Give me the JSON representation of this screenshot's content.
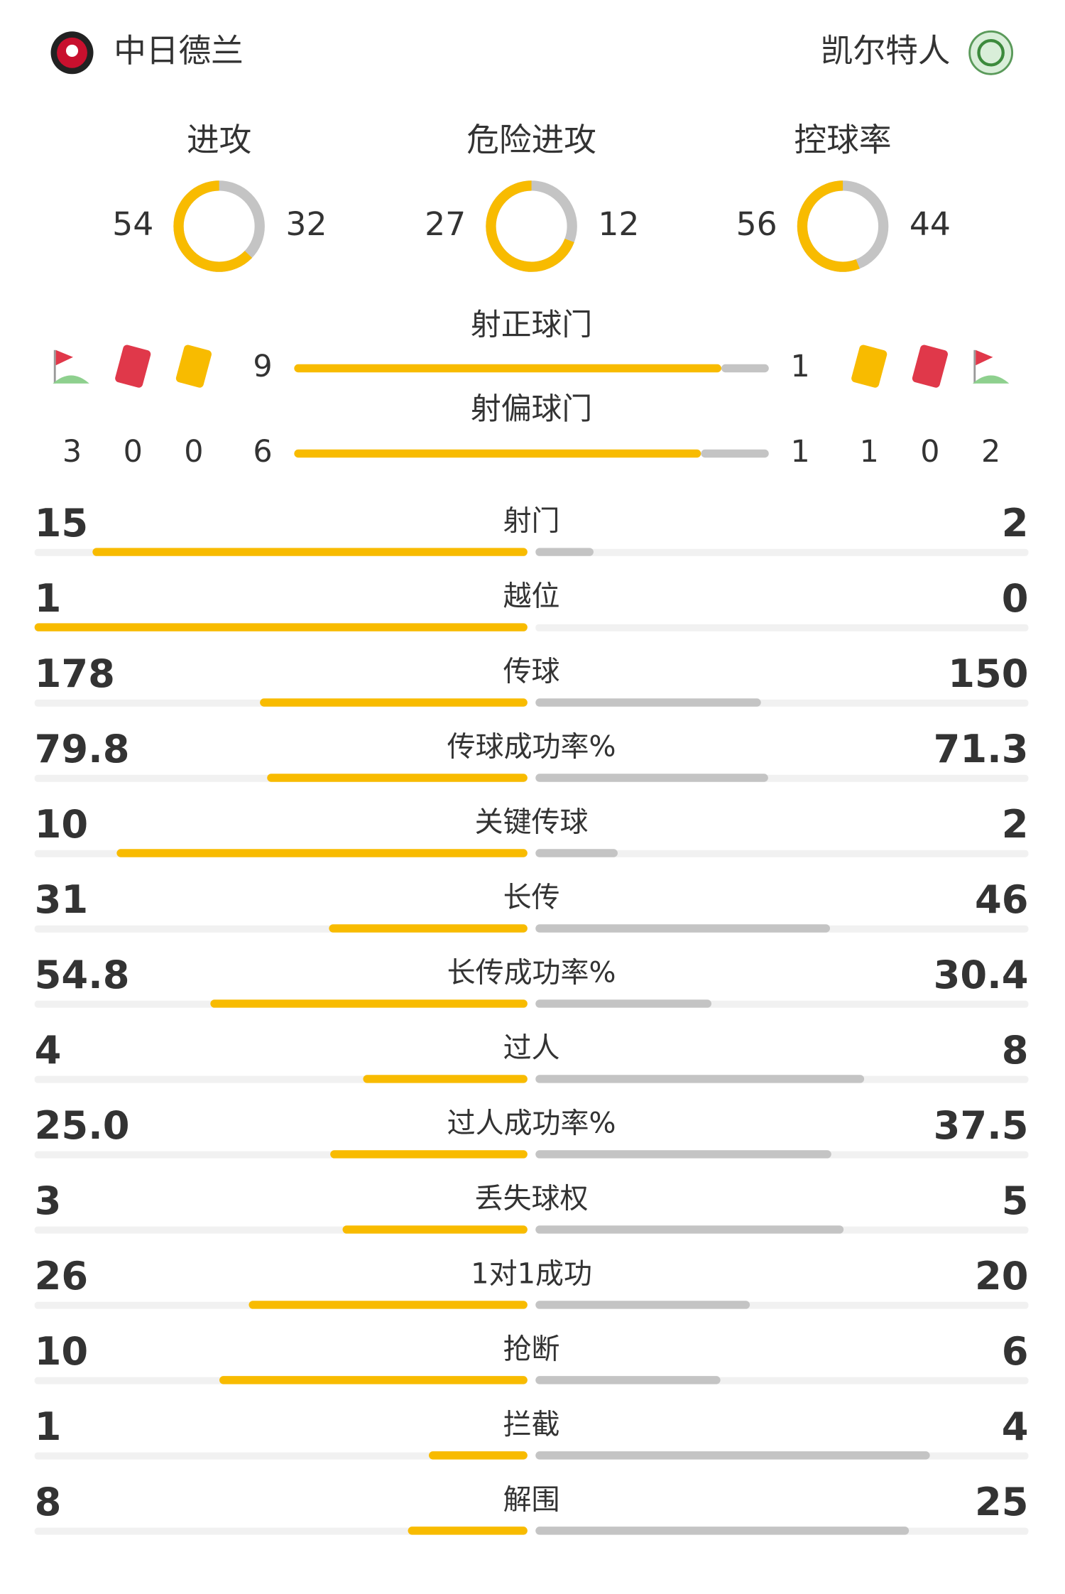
{
  "home": {
    "name": "中日德兰",
    "corners": 3,
    "red_cards": 0,
    "yellow_cards": 0
  },
  "away": {
    "name": "凯尔特人",
    "corners": 2,
    "red_cards": 0,
    "yellow_cards": 1
  },
  "rings": [
    {
      "label": "进攻",
      "home": 54,
      "away": 32
    },
    {
      "label": "危险进攻",
      "home": 27,
      "away": 12
    },
    {
      "label": "控球率",
      "home": 56,
      "away": 44
    }
  ],
  "shots": [
    {
      "label": "射正球门",
      "home": 9,
      "away": 1
    },
    {
      "label": "射偏球门",
      "home": 6,
      "away": 1
    }
  ],
  "stats": [
    {
      "label": "射门",
      "home": 15,
      "away": 2
    },
    {
      "label": "越位",
      "home": 1,
      "away": 0
    },
    {
      "label": "传球",
      "home": 178,
      "away": 150
    },
    {
      "label": "传球成功率%",
      "home": 79.8,
      "away": 71.3
    },
    {
      "label": "关键传球",
      "home": 10,
      "away": 2
    },
    {
      "label": "长传",
      "home": 31,
      "away": 46
    },
    {
      "label": "长传成功率%",
      "home": 54.8,
      "away": 30.4
    },
    {
      "label": "过人",
      "home": 4,
      "away": 8
    },
    {
      "label": "过人成功率%",
      "home": {
        "value": 25,
        "label": "25.0"
      },
      "away": 37.5
    },
    {
      "label": "丢失球权",
      "home": 3,
      "away": 5
    },
    {
      "label": "1对1成功",
      "home": 26,
      "away": 20
    },
    {
      "label": "抢断",
      "home": 10,
      "away": 6
    },
    {
      "label": "拦截",
      "home": 1,
      "away": 4
    },
    {
      "label": "解围",
      "home": 8,
      "away": 25
    }
  ]
}
